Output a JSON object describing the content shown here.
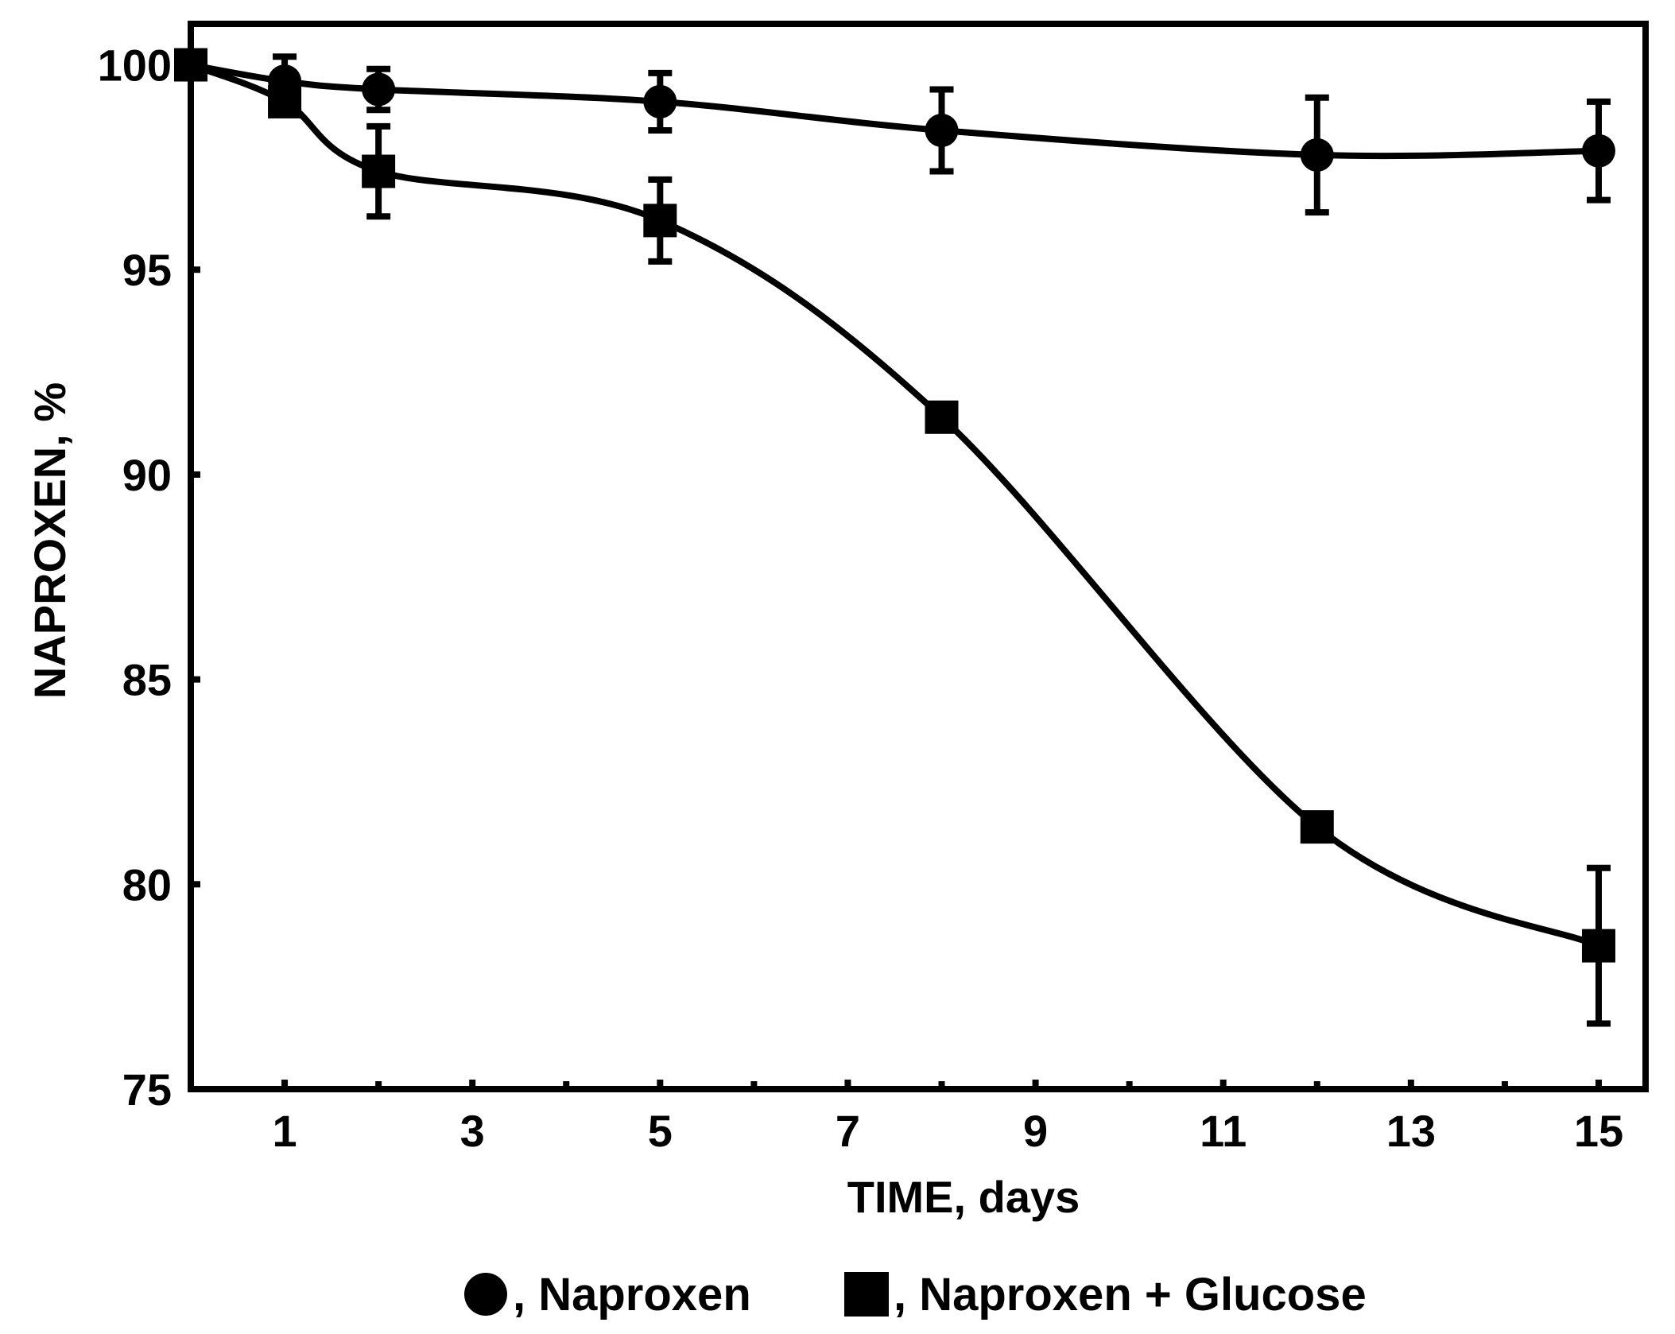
{
  "chart_data": {
    "type": "line",
    "title": "",
    "xlabel": "TIME, days",
    "ylabel": "NAPROXEN, %",
    "xlim": [
      0,
      15.5
    ],
    "ylim": [
      75,
      101
    ],
    "x_ticks": [
      1,
      3,
      5,
      7,
      9,
      11,
      13,
      15
    ],
    "x_minor_ticks": [
      2,
      4,
      6,
      8,
      10,
      12,
      14
    ],
    "y_ticks": [
      75,
      80,
      85,
      90,
      95,
      100
    ],
    "grid": false,
    "legend_position": "bottom",
    "series": [
      {
        "name": "Naproxen",
        "legend_label": ", Naproxen",
        "marker": "circle",
        "x": [
          0,
          1,
          2,
          5,
          8,
          12,
          15
        ],
        "y": [
          100,
          99.6,
          99.4,
          99.1,
          98.4,
          97.8,
          97.9
        ],
        "err": [
          0,
          0.6,
          0.5,
          0.7,
          1.0,
          1.4,
          1.2
        ]
      },
      {
        "name": "Naproxen + Glucose",
        "legend_label": ", Naproxen + Glucose",
        "marker": "square",
        "x": [
          0,
          1,
          2,
          5,
          8,
          12,
          15
        ],
        "y": [
          100,
          99.1,
          97.4,
          96.2,
          91.4,
          81.4,
          78.5
        ],
        "err": [
          0,
          0.3,
          1.1,
          1.0,
          0,
          0.3,
          1.9
        ]
      }
    ],
    "colors": {
      "line": "#000000",
      "marker": "#000000",
      "background": "#ffffff"
    }
  }
}
